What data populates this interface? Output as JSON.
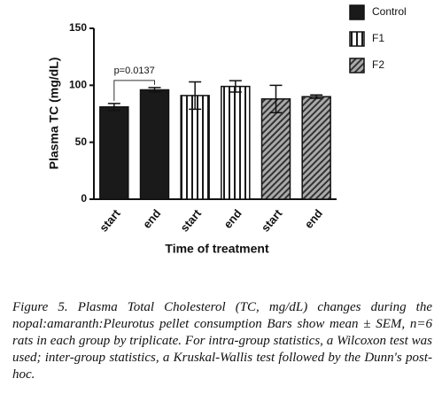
{
  "chart_data": {
    "type": "bar",
    "y_label": "Plasma TC (mg/dL)",
    "x_label": "Time of treatment",
    "categories": [
      "start",
      "end",
      "start",
      "end",
      "start",
      "end"
    ],
    "series": [
      {
        "name": "Control",
        "color": "#1a1a1a",
        "pattern": "solid",
        "values": [
          81,
          96,
          null,
          null,
          null,
          null
        ],
        "errors": [
          3,
          2,
          null,
          null,
          null,
          null
        ]
      },
      {
        "name": "F1",
        "color": "#1a1a1a",
        "pattern": "vertical-stripes",
        "values": [
          null,
          null,
          91,
          99,
          null,
          null
        ],
        "errors": [
          null,
          null,
          12,
          5,
          null,
          null
        ]
      },
      {
        "name": "F2",
        "color": "#1a1a1a",
        "pattern": "diagonal-hatch",
        "values": [
          null,
          null,
          null,
          null,
          88,
          90
        ],
        "errors": [
          null,
          null,
          null,
          null,
          12,
          1.5
        ]
      }
    ],
    "annotation": "p=0.0137",
    "ylim": [
      0,
      150
    ],
    "yticks": [
      0,
      50,
      100,
      150
    ],
    "grid": false,
    "legend": "top-right"
  },
  "caption": "Figure 5. Plasma Total Cholesterol (TC, mg/dL) changes during the nopal:amaranth:Pleurotus pellet consumption Bars show mean ± SEM, n=6 rats in each group by triplicate. For intra-group statistics, a Wilcoxon test was used; inter-group statistics, a Kruskal-Wallis test followed by the Dunn's post-hoc."
}
